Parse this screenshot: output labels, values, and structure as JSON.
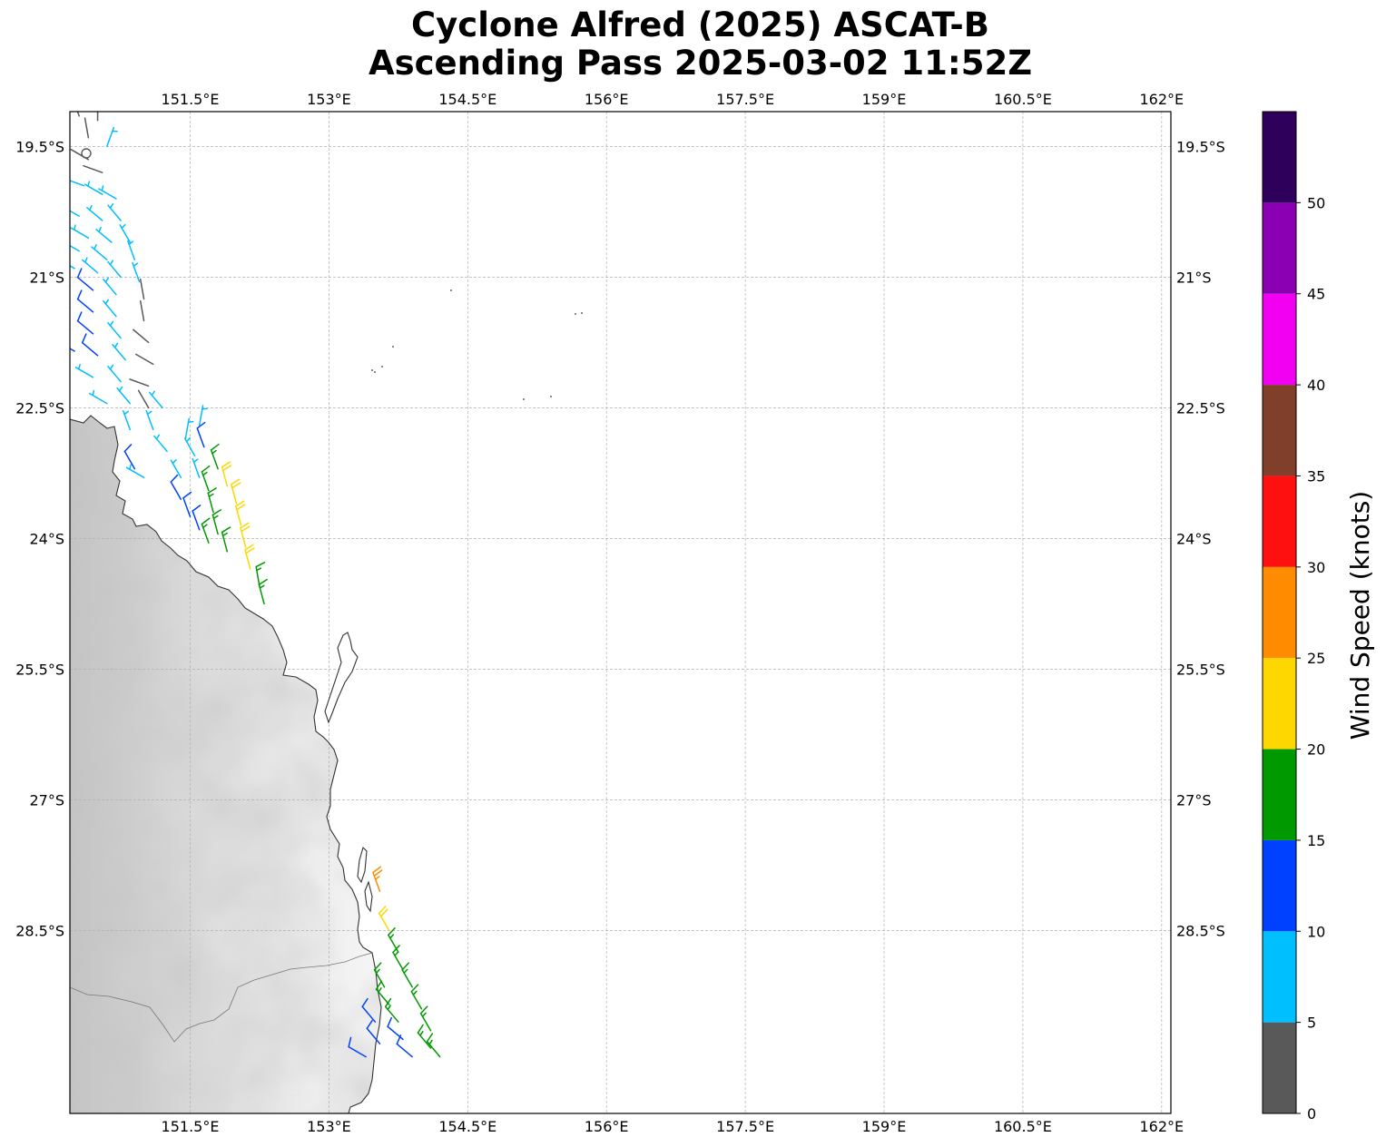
{
  "title_line1": "Cyclone Alfred (2025) ASCAT-B",
  "title_line2": "Ascending Pass 2025-03-02 11:52Z",
  "map": {
    "lon_range": [
      150.2,
      162.1
    ],
    "lat_range": [
      -30.6,
      -19.1
    ],
    "lon_ticks": [
      {
        "value": 151.5,
        "label": "151.5°E"
      },
      {
        "value": 153,
        "label": "153°E"
      },
      {
        "value": 154.5,
        "label": "154.5°E"
      },
      {
        "value": 156,
        "label": "156°E"
      },
      {
        "value": 157.5,
        "label": "157.5°E"
      },
      {
        "value": 159,
        "label": "159°E"
      },
      {
        "value": 160.5,
        "label": "160.5°E"
      },
      {
        "value": 162,
        "label": "162°E"
      }
    ],
    "lat_ticks": [
      {
        "value": -19.5,
        "label": "19.5°S"
      },
      {
        "value": -21,
        "label": "21°S"
      },
      {
        "value": -22.5,
        "label": "22.5°S"
      },
      {
        "value": -24,
        "label": "24°S"
      },
      {
        "value": -25.5,
        "label": "25.5°S"
      },
      {
        "value": -27,
        "label": "27°S"
      },
      {
        "value": -28.5,
        "label": "28.5°S"
      }
    ]
  },
  "colorbar": {
    "label": "Wind Speed (knots)",
    "ticks": [
      "0",
      "5",
      "10",
      "15",
      "20",
      "25",
      "30",
      "35",
      "40",
      "45",
      "50"
    ],
    "colors": [
      "#595959",
      "#00bfff",
      "#0040ff",
      "#009900",
      "#ffd700",
      "#ff8c00",
      "#ff1010",
      "#7f3f2a",
      "#f200f2",
      "#8b00b3",
      "#2e005c"
    ]
  },
  "colors": {
    "coastline": "#333333",
    "land_dark": "#c4c4c4",
    "land_light": "#f6f6f6",
    "grid": "#b0b0b0"
  },
  "wind_barbs": [
    {
      "lon": 150.3,
      "lat": -19.15,
      "dir": 340,
      "spd": 3
    },
    {
      "lon": 150.5,
      "lat": -19.2,
      "dir": 0,
      "spd": 3
    },
    {
      "lon": 150.4,
      "lat": -19.4,
      "dir": 350,
      "spd": 4
    },
    {
      "lon": 150.6,
      "lat": -19.5,
      "dir": 20,
      "spd": 6
    },
    {
      "lon": 150.4,
      "lat": -19.65,
      "dir": 300,
      "spd": 4
    },
    {
      "lon": 150.55,
      "lat": -19.8,
      "dir": 290,
      "spd": 3
    },
    {
      "lon": 150.35,
      "lat": -19.95,
      "dir": 290,
      "spd": 8
    },
    {
      "lon": 150.55,
      "lat": -20.05,
      "dir": 300,
      "spd": 8
    },
    {
      "lon": 150.7,
      "lat": -20.1,
      "dir": 300,
      "spd": 7
    },
    {
      "lon": 150.2,
      "lat": -20.15,
      "dir": 290,
      "spd": 8
    },
    {
      "lon": 150.3,
      "lat": -20.3,
      "dir": 300,
      "spd": 8
    },
    {
      "lon": 150.55,
      "lat": -20.35,
      "dir": 310,
      "spd": 8
    },
    {
      "lon": 150.75,
      "lat": -20.35,
      "dir": 320,
      "spd": 9
    },
    {
      "lon": 150.2,
      "lat": -20.5,
      "dir": 300,
      "spd": 9
    },
    {
      "lon": 150.4,
      "lat": -20.55,
      "dir": 300,
      "spd": 8
    },
    {
      "lon": 150.65,
      "lat": -20.6,
      "dir": 310,
      "spd": 9
    },
    {
      "lon": 150.85,
      "lat": -20.6,
      "dir": 330,
      "spd": 8
    },
    {
      "lon": 150.3,
      "lat": -20.7,
      "dir": 300,
      "spd": 9
    },
    {
      "lon": 150.6,
      "lat": -20.8,
      "dir": 310,
      "spd": 9
    },
    {
      "lon": 150.9,
      "lat": -20.8,
      "dir": 340,
      "spd": 8
    },
    {
      "lon": 150.25,
      "lat": -20.9,
      "dir": 300,
      "spd": 8
    },
    {
      "lon": 150.5,
      "lat": -20.95,
      "dir": 310,
      "spd": 9
    },
    {
      "lon": 150.75,
      "lat": -21.0,
      "dir": 320,
      "spd": 8
    },
    {
      "lon": 150.95,
      "lat": -21.05,
      "dir": 340,
      "spd": 6
    },
    {
      "lon": 150.2,
      "lat": -21.1,
      "dir": 300,
      "spd": 11
    },
    {
      "lon": 150.45,
      "lat": -21.15,
      "dir": 310,
      "spd": 11
    },
    {
      "lon": 150.7,
      "lat": -21.2,
      "dir": 320,
      "spd": 9
    },
    {
      "lon": 151.0,
      "lat": -21.25,
      "dir": 350,
      "spd": 4
    },
    {
      "lon": 150.2,
      "lat": -21.35,
      "dir": 300,
      "spd": 12
    },
    {
      "lon": 150.45,
      "lat": -21.4,
      "dir": 310,
      "spd": 12
    },
    {
      "lon": 150.7,
      "lat": -21.45,
      "dir": 320,
      "spd": 8
    },
    {
      "lon": 151.0,
      "lat": -21.5,
      "dir": 350,
      "spd": 4
    },
    {
      "lon": 150.2,
      "lat": -21.6,
      "dir": 300,
      "spd": 12
    },
    {
      "lon": 150.45,
      "lat": -21.65,
      "dir": 310,
      "spd": 12
    },
    {
      "lon": 150.75,
      "lat": -21.7,
      "dir": 320,
      "spd": 9
    },
    {
      "lon": 151.05,
      "lat": -21.75,
      "dir": 310,
      "spd": 4
    },
    {
      "lon": 150.25,
      "lat": -21.85,
      "dir": 300,
      "spd": 12
    },
    {
      "lon": 150.5,
      "lat": -21.9,
      "dir": 310,
      "spd": 11
    },
    {
      "lon": 150.8,
      "lat": -21.95,
      "dir": 320,
      "spd": 8
    },
    {
      "lon": 151.1,
      "lat": -22.0,
      "dir": 300,
      "spd": 3
    },
    {
      "lon": 150.2,
      "lat": -22.15,
      "dir": 290,
      "spd": 8
    },
    {
      "lon": 150.45,
      "lat": -22.15,
      "dir": 300,
      "spd": 8
    },
    {
      "lon": 150.75,
      "lat": -22.2,
      "dir": 320,
      "spd": 8
    },
    {
      "lon": 151.05,
      "lat": -22.25,
      "dir": 290,
      "spd": 3
    },
    {
      "lon": 150.6,
      "lat": -22.45,
      "dir": 300,
      "spd": 8
    },
    {
      "lon": 150.85,
      "lat": -22.45,
      "dir": 320,
      "spd": 8
    },
    {
      "lon": 151.05,
      "lat": -22.5,
      "dir": 330,
      "spd": 4
    },
    {
      "lon": 151.2,
      "lat": -22.5,
      "dir": 320,
      "spd": 9
    },
    {
      "lon": 150.85,
      "lat": -22.75,
      "dir": 340,
      "spd": 9
    },
    {
      "lon": 151.1,
      "lat": -22.75,
      "dir": 340,
      "spd": 8
    },
    {
      "lon": 151.45,
      "lat": -22.85,
      "dir": 10,
      "spd": 8
    },
    {
      "lon": 151.6,
      "lat": -22.7,
      "dir": 10,
      "spd": 9
    },
    {
      "lon": 151.25,
      "lat": -23.0,
      "dir": 320,
      "spd": 8
    },
    {
      "lon": 151.55,
      "lat": -23.05,
      "dir": 330,
      "spd": 8
    },
    {
      "lon": 151.65,
      "lat": -22.95,
      "dir": 340,
      "spd": 12
    },
    {
      "lon": 150.9,
      "lat": -23.2,
      "dir": 330,
      "spd": 12
    },
    {
      "lon": 151.0,
      "lat": -23.3,
      "dir": 300,
      "spd": 8
    },
    {
      "lon": 151.4,
      "lat": -23.3,
      "dir": 330,
      "spd": 8
    },
    {
      "lon": 151.6,
      "lat": -23.3,
      "dir": 340,
      "spd": 9
    },
    {
      "lon": 151.8,
      "lat": -23.2,
      "dir": 340,
      "spd": 16
    },
    {
      "lon": 151.4,
      "lat": -23.55,
      "dir": 330,
      "spd": 12
    },
    {
      "lon": 151.7,
      "lat": -23.45,
      "dir": 340,
      "spd": 16
    },
    {
      "lon": 151.9,
      "lat": -23.4,
      "dir": 345,
      "spd": 22
    },
    {
      "lon": 151.5,
      "lat": -23.75,
      "dir": 340,
      "spd": 12
    },
    {
      "lon": 151.75,
      "lat": -23.7,
      "dir": 345,
      "spd": 16
    },
    {
      "lon": 152.0,
      "lat": -23.6,
      "dir": 345,
      "spd": 22
    },
    {
      "lon": 151.6,
      "lat": -23.9,
      "dir": 340,
      "spd": 12
    },
    {
      "lon": 151.8,
      "lat": -23.95,
      "dir": 345,
      "spd": 16
    },
    {
      "lon": 152.05,
      "lat": -23.85,
      "dir": 345,
      "spd": 22
    },
    {
      "lon": 151.7,
      "lat": -24.05,
      "dir": 340,
      "spd": 16
    },
    {
      "lon": 151.9,
      "lat": -24.15,
      "dir": 345,
      "spd": 18
    },
    {
      "lon": 152.1,
      "lat": -24.1,
      "dir": 345,
      "spd": 22
    },
    {
      "lon": 152.15,
      "lat": -24.35,
      "dir": 345,
      "spd": 23
    },
    {
      "lon": 152.25,
      "lat": -24.55,
      "dir": 350,
      "spd": 18
    },
    {
      "lon": 152.3,
      "lat": -24.75,
      "dir": 345,
      "spd": 17
    },
    {
      "lon": 153.55,
      "lat": -28.05,
      "dir": 340,
      "spd": 27
    },
    {
      "lon": 153.65,
      "lat": -28.5,
      "dir": 330,
      "spd": 23
    },
    {
      "lon": 153.75,
      "lat": -28.75,
      "dir": 330,
      "spd": 19
    },
    {
      "lon": 153.8,
      "lat": -28.95,
      "dir": 330,
      "spd": 19
    },
    {
      "lon": 153.6,
      "lat": -29.15,
      "dir": 330,
      "spd": 18
    },
    {
      "lon": 153.9,
      "lat": -29.15,
      "dir": 330,
      "spd": 18
    },
    {
      "lon": 153.65,
      "lat": -29.35,
      "dir": 320,
      "spd": 18
    },
    {
      "lon": 154.0,
      "lat": -29.4,
      "dir": 330,
      "spd": 19
    },
    {
      "lon": 153.5,
      "lat": -29.55,
      "dir": 320,
      "spd": 12
    },
    {
      "lon": 153.75,
      "lat": -29.55,
      "dir": 320,
      "spd": 17
    },
    {
      "lon": 154.1,
      "lat": -29.65,
      "dir": 330,
      "spd": 18
    },
    {
      "lon": 153.55,
      "lat": -29.8,
      "dir": 320,
      "spd": 13
    },
    {
      "lon": 153.8,
      "lat": -29.75,
      "dir": 310,
      "spd": 13
    },
    {
      "lon": 154.1,
      "lat": -29.85,
      "dir": 320,
      "spd": 16
    },
    {
      "lon": 153.4,
      "lat": -29.95,
      "dir": 300,
      "spd": 12
    },
    {
      "lon": 153.9,
      "lat": -29.95,
      "dir": 310,
      "spd": 12
    },
    {
      "lon": 154.2,
      "lat": -29.95,
      "dir": 320,
      "spd": 17
    }
  ]
}
